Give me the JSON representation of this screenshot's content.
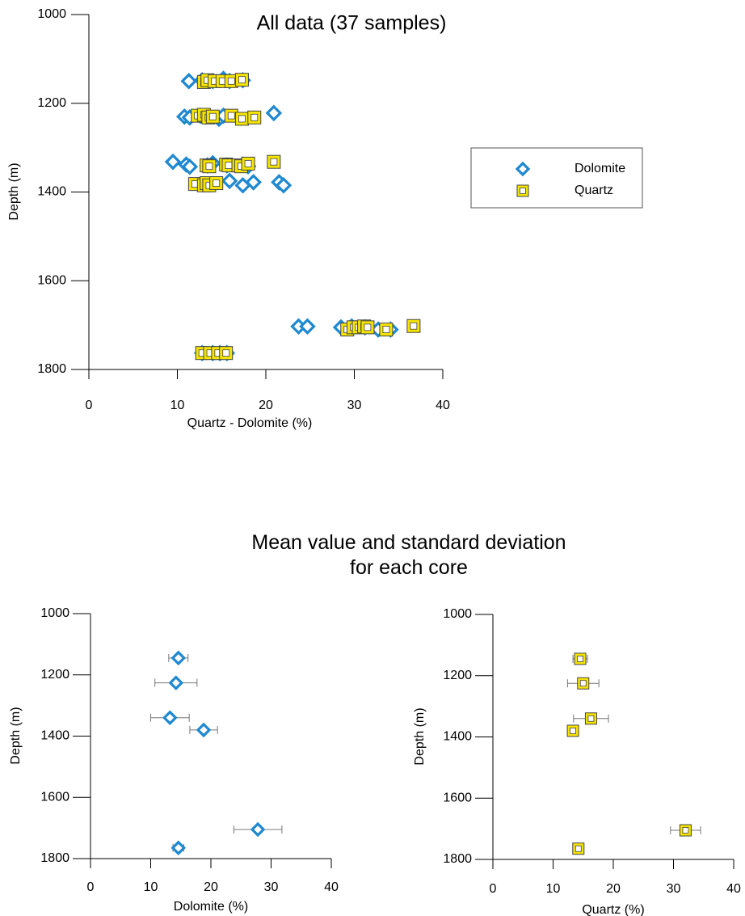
{
  "figure": {
    "title": "Mean value and standard deviation\nfor each core"
  },
  "chart_data": [
    {
      "type": "scatter",
      "title": "All data (37 samples)",
      "xlabel": "Quartz - Dolomite (%)",
      "ylabel": "Depth (m)",
      "xlim": [
        0,
        40
      ],
      "ylim": [
        1800,
        1000
      ],
      "xticks": [
        0,
        10,
        20,
        30,
        40
      ],
      "yticks": [
        1000,
        1200,
        1400,
        1600,
        1800
      ],
      "legend": "right",
      "series": [
        {
          "name": "Dolomite",
          "color": "#1e88d0",
          "marker": "diamond",
          "x": [
            11.3,
            12.8,
            14.0,
            15.2,
            15.9,
            17.4,
            10.8,
            11.4,
            12.6,
            13.2,
            14.7,
            15.2,
            20.9,
            9.5,
            11.0,
            11.4,
            13.4,
            14.0,
            15.6,
            17.4,
            18.0,
            15.9,
            17.4,
            18.6,
            21.5,
            22.0,
            23.7,
            24.7,
            28.5,
            29.7,
            31.2,
            32.7,
            34.1,
            12.8,
            14.0,
            14.8,
            15.6
          ],
          "y": [
            1150,
            1148,
            1150,
            1145,
            1150,
            1148,
            1230,
            1232,
            1228,
            1230,
            1235,
            1228,
            1222,
            1332,
            1338,
            1343,
            1340,
            1335,
            1340,
            1338,
            1342,
            1375,
            1385,
            1378,
            1378,
            1385,
            1703,
            1703,
            1705,
            1703,
            1705,
            1710,
            1710,
            1763,
            1763,
            1763,
            1763
          ]
        },
        {
          "name": "Quartz",
          "color": "#f5e400",
          "marker": "square",
          "x": [
            13.0,
            13.4,
            14.2,
            15.1,
            16.1,
            17.3,
            12.3,
            13.0,
            13.5,
            14.0,
            16.1,
            17.3,
            18.7,
            13.3,
            13.6,
            15.5,
            15.8,
            16.9,
            17.2,
            18.0,
            20.9,
            12.0,
            13.0,
            13.3,
            13.6,
            14.4,
            29.2,
            29.9,
            30.5,
            31.1,
            31.5,
            33.6,
            36.7,
            12.8,
            13.7,
            14.6,
            15.5
          ],
          "y": [
            1152,
            1148,
            1150,
            1150,
            1150,
            1147,
            1228,
            1226,
            1232,
            1230,
            1228,
            1235,
            1232,
            1340,
            1342,
            1338,
            1340,
            1340,
            1342,
            1336,
            1332,
            1382,
            1385,
            1380,
            1385,
            1380,
            1710,
            1705,
            1705,
            1703,
            1705,
            1710,
            1702,
            1763,
            1763,
            1763,
            1763
          ]
        }
      ]
    },
    {
      "type": "errorbar",
      "xlabel": "Dolomite (%)",
      "ylabel": "Depth (m)",
      "xlim": [
        0,
        40
      ],
      "ylim": [
        1800,
        1000
      ],
      "xticks": [
        0,
        10,
        20,
        30,
        40
      ],
      "yticks": [
        1000,
        1200,
        1400,
        1600,
        1800
      ],
      "series": [
        {
          "name": "Dolomite",
          "color": "#1e88d0",
          "marker": "diamond",
          "x": [
            14.6,
            14.2,
            13.2,
            18.8,
            27.8,
            14.6
          ],
          "y": [
            1145,
            1226,
            1340,
            1380,
            1705,
            1765
          ],
          "xerr": [
            1.6,
            3.5,
            3.2,
            2.3,
            4.0,
            0.9
          ]
        }
      ]
    },
    {
      "type": "errorbar",
      "xlabel": "Quartz (%)",
      "ylabel": "Depth (m)",
      "xlim": [
        0,
        40
      ],
      "ylim": [
        1800,
        1000
      ],
      "xticks": [
        0,
        10,
        20,
        30,
        40
      ],
      "yticks": [
        1000,
        1200,
        1400,
        1600,
        1800
      ],
      "series": [
        {
          "name": "Quartz",
          "color": "#f5e400",
          "marker": "square",
          "x": [
            14.5,
            15.0,
            16.3,
            13.3,
            32.0,
            14.2
          ],
          "y": [
            1145,
            1225,
            1340,
            1380,
            1705,
            1765
          ],
          "xerr": [
            1.2,
            2.6,
            2.9,
            0.8,
            2.5,
            0.6
          ]
        }
      ]
    }
  ]
}
